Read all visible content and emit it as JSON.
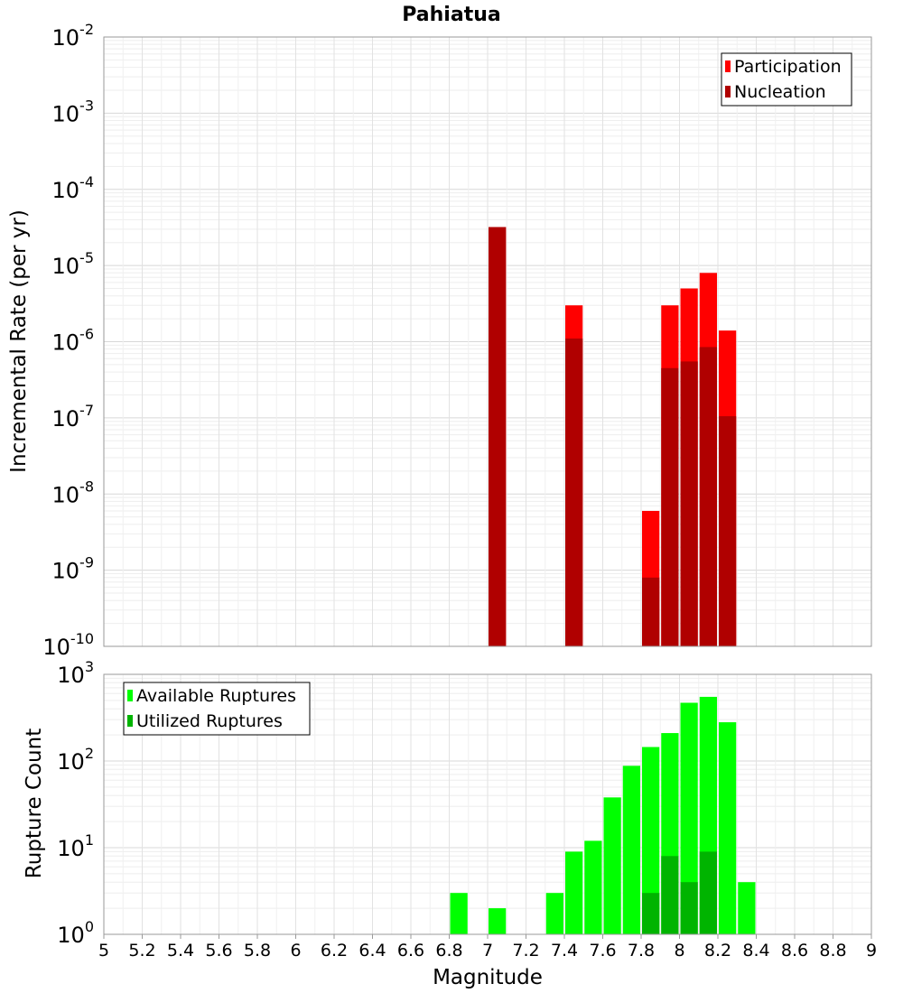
{
  "title": "Pahiatua",
  "chart_data": [
    {
      "type": "bar",
      "ylabel": "Incremental Rate (per yr)",
      "yscale": "log",
      "ylim_exp": [
        -10,
        -2
      ],
      "xlim": [
        5,
        9
      ],
      "grid": true,
      "legend_position": "top-right",
      "bar_width": 0.1,
      "series": [
        {
          "name": "Participation",
          "color": "#ff0000",
          "points": [
            {
              "x": 7.05,
              "y": 3.2e-05
            },
            {
              "x": 7.45,
              "y": 3e-06
            },
            {
              "x": 7.85,
              "y": 6e-09
            },
            {
              "x": 7.95,
              "y": 3e-06
            },
            {
              "x": 8.05,
              "y": 5e-06
            },
            {
              "x": 8.15,
              "y": 8e-06
            },
            {
              "x": 8.25,
              "y": 1.4e-06
            }
          ]
        },
        {
          "name": "Nucleation",
          "color": "#b00000",
          "points": [
            {
              "x": 7.05,
              "y": 3.2e-05
            },
            {
              "x": 7.45,
              "y": 1.1e-06
            },
            {
              "x": 7.85,
              "y": 8e-10
            },
            {
              "x": 7.95,
              "y": 4.5e-07
            },
            {
              "x": 8.05,
              "y": 5.5e-07
            },
            {
              "x": 8.15,
              "y": 8.5e-07
            },
            {
              "x": 8.25,
              "y": 1.05e-07
            }
          ]
        }
      ]
    },
    {
      "type": "bar",
      "ylabel": "Rupture Count",
      "xlabel": "Magnitude",
      "yscale": "log",
      "ylim_exp": [
        0,
        3
      ],
      "xlim": [
        5,
        9
      ],
      "xticks": [
        "5",
        "5.2",
        "5.4",
        "5.6",
        "5.8",
        "6",
        "6.2",
        "6.4",
        "6.6",
        "6.8",
        "7",
        "7.2",
        "7.4",
        "7.6",
        "7.8",
        "8",
        "8.2",
        "8.4",
        "8.6",
        "8.8",
        "9"
      ],
      "grid": true,
      "legend_position": "top-left",
      "bar_width": 0.1,
      "series": [
        {
          "name": "Available Ruptures",
          "color": "#00ff00",
          "points": [
            {
              "x": 6.85,
              "y": 3
            },
            {
              "x": 7.05,
              "y": 2
            },
            {
              "x": 7.15,
              "y": 1
            },
            {
              "x": 7.25,
              "y": 1
            },
            {
              "x": 7.35,
              "y": 3
            },
            {
              "x": 7.45,
              "y": 9
            },
            {
              "x": 7.55,
              "y": 12
            },
            {
              "x": 7.65,
              "y": 38
            },
            {
              "x": 7.75,
              "y": 88
            },
            {
              "x": 7.85,
              "y": 145
            },
            {
              "x": 7.95,
              "y": 210
            },
            {
              "x": 8.05,
              "y": 470
            },
            {
              "x": 8.15,
              "y": 550
            },
            {
              "x": 8.25,
              "y": 280
            },
            {
              "x": 8.35,
              "y": 4
            }
          ]
        },
        {
          "name": "Utilized Ruptures",
          "color": "#00b400",
          "points": [
            {
              "x": 7.05,
              "y": 1
            },
            {
              "x": 7.45,
              "y": 1
            },
            {
              "x": 7.85,
              "y": 3
            },
            {
              "x": 7.95,
              "y": 8
            },
            {
              "x": 8.05,
              "y": 4
            },
            {
              "x": 8.15,
              "y": 9
            },
            {
              "x": 8.25,
              "y": 1
            }
          ]
        }
      ]
    }
  ]
}
